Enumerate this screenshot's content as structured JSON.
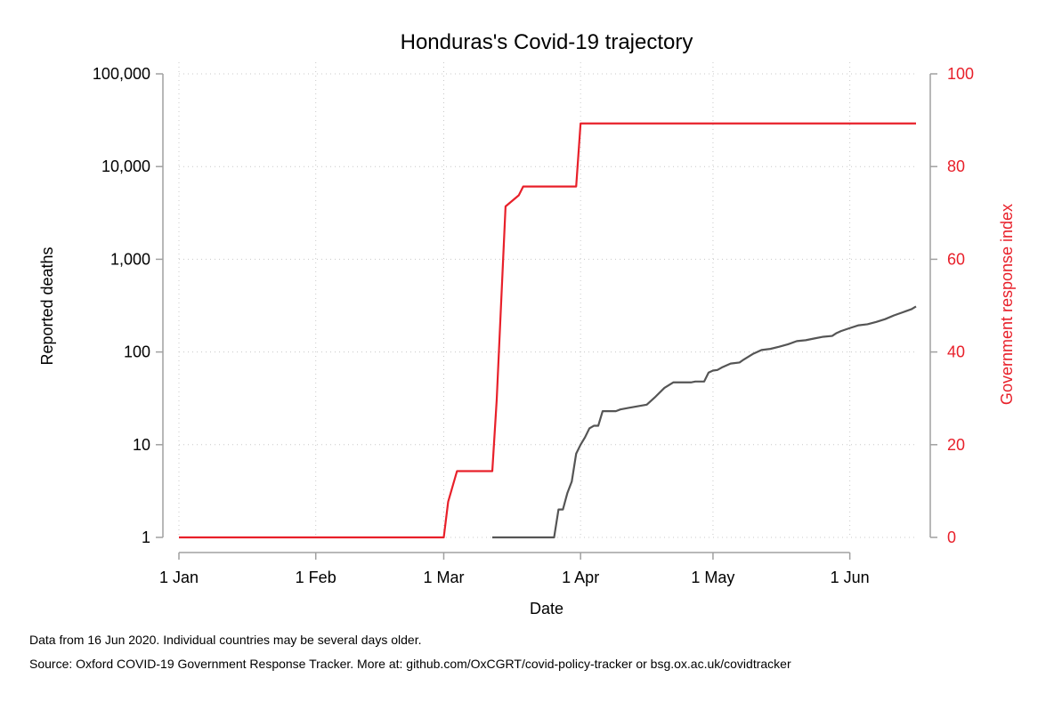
{
  "chart_data": {
    "type": "line",
    "title": "Honduras's Covid-19 trajectory",
    "xlabel": "Date",
    "ylabel_left": "Reported deaths",
    "ylabel_right": "Government response index",
    "x_ticks": [
      "1 Jan",
      "1 Feb",
      "1 Mar",
      "1 Apr",
      "1 May",
      "1 Jun"
    ],
    "x_tick_dates": [
      "2020-01-01",
      "2020-02-01",
      "2020-03-01",
      "2020-04-01",
      "2020-05-01",
      "2020-06-01"
    ],
    "xlim": [
      "2020-01-01",
      "2020-06-16"
    ],
    "left_axis": {
      "scale": "log",
      "ylim": [
        1,
        100000
      ],
      "ticks": [
        1,
        10,
        100,
        1000,
        10000,
        100000
      ],
      "tick_labels": [
        "1",
        "10",
        "100",
        "1,000",
        "10,000",
        "100,000"
      ]
    },
    "right_axis": {
      "scale": "linear",
      "ylim": [
        0,
        100
      ],
      "ticks": [
        0,
        20,
        40,
        60,
        80,
        100
      ],
      "tick_labels": [
        "0",
        "20",
        "40",
        "60",
        "80",
        "100"
      ],
      "color": "#e8202a"
    },
    "grid": true,
    "series": [
      {
        "axis": "right",
        "color": "#e8202a",
        "step": true,
        "points": [
          [
            "2020-01-01",
            0
          ],
          [
            "2020-03-01",
            0
          ],
          [
            "2020-03-02",
            7.7
          ],
          [
            "2020-03-04",
            14.3
          ],
          [
            "2020-03-12",
            14.3
          ],
          [
            "2020-03-13",
            29.7
          ],
          [
            "2020-03-15",
            71.4
          ],
          [
            "2020-03-18",
            73.8
          ],
          [
            "2020-03-19",
            75.7
          ],
          [
            "2020-03-31",
            75.7
          ],
          [
            "2020-04-01",
            89.3
          ],
          [
            "2020-06-16",
            89.3
          ]
        ]
      },
      {
        "axis": "left",
        "color": "#555555",
        "step": true,
        "points": [
          [
            "2020-03-12",
            1
          ],
          [
            "2020-03-26",
            1
          ],
          [
            "2020-03-27",
            2
          ],
          [
            "2020-03-28",
            2
          ],
          [
            "2020-03-29",
            3
          ],
          [
            "2020-03-30",
            4
          ],
          [
            "2020-03-31",
            8
          ],
          [
            "2020-04-01",
            10
          ],
          [
            "2020-04-02",
            12
          ],
          [
            "2020-04-03",
            15
          ],
          [
            "2020-04-04",
            16
          ],
          [
            "2020-04-05",
            16
          ],
          [
            "2020-04-06",
            23
          ],
          [
            "2020-04-09",
            23
          ],
          [
            "2020-04-10",
            24
          ],
          [
            "2020-04-12",
            25
          ],
          [
            "2020-04-14",
            26
          ],
          [
            "2020-04-16",
            27
          ],
          [
            "2020-04-18",
            33
          ],
          [
            "2020-04-20",
            41
          ],
          [
            "2020-04-22",
            47
          ],
          [
            "2020-04-26",
            47
          ],
          [
            "2020-04-27",
            48
          ],
          [
            "2020-04-29",
            48
          ],
          [
            "2020-04-30",
            60
          ],
          [
            "2020-05-01",
            63
          ],
          [
            "2020-05-02",
            64
          ],
          [
            "2020-05-03",
            68
          ],
          [
            "2020-05-05",
            75
          ],
          [
            "2020-05-07",
            77
          ],
          [
            "2020-05-08",
            83
          ],
          [
            "2020-05-10",
            95
          ],
          [
            "2020-05-12",
            105
          ],
          [
            "2020-05-14",
            108
          ],
          [
            "2020-05-16",
            114
          ],
          [
            "2020-05-18",
            121
          ],
          [
            "2020-05-20",
            131
          ],
          [
            "2020-05-22",
            134
          ],
          [
            "2020-05-24",
            140
          ],
          [
            "2020-05-26",
            146
          ],
          [
            "2020-05-28",
            149
          ],
          [
            "2020-05-29",
            160
          ],
          [
            "2020-05-30",
            168
          ],
          [
            "2020-06-01",
            181
          ],
          [
            "2020-06-03",
            194
          ],
          [
            "2020-06-05",
            199
          ],
          [
            "2020-06-07",
            211
          ],
          [
            "2020-06-09",
            226
          ],
          [
            "2020-06-11",
            248
          ],
          [
            "2020-06-13",
            268
          ],
          [
            "2020-06-15",
            290
          ],
          [
            "2020-06-16",
            310
          ]
        ]
      }
    ]
  },
  "footnotes": {
    "line1": "Data from 16 Jun 2020. Individual countries may be several days older.",
    "line2": "Source: Oxford COVID-19 Government Response Tracker. More at: github.com/OxCGRT/covid-policy-tracker or bsg.ox.ac.uk/covidtracker"
  }
}
